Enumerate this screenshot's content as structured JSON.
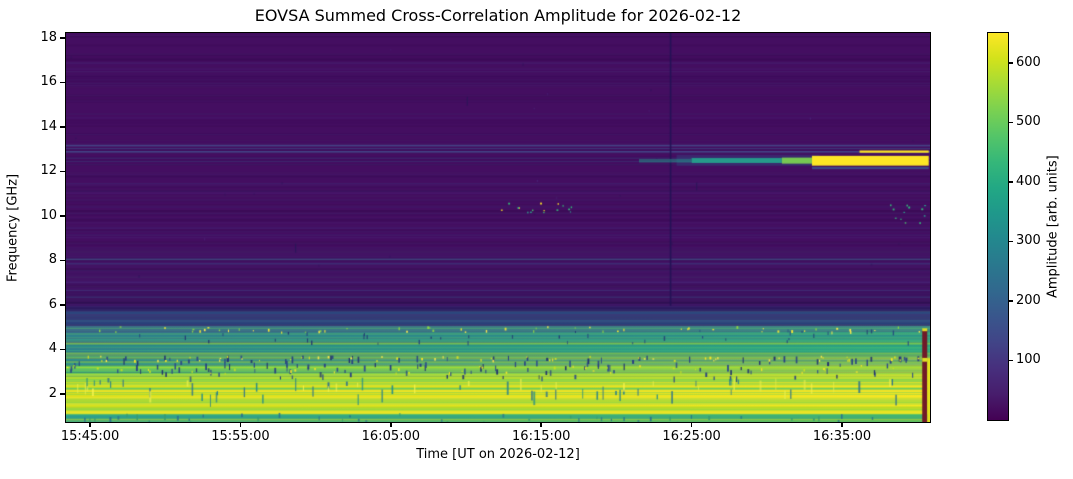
{
  "chart_data": {
    "type": "heatmap",
    "subtype": "radio-spectrogram",
    "title": "EOVSA Summed Cross-Correlation Amplitude for 2026-02-12",
    "xlabel": "Time [UT on 2026-02-12]",
    "ylabel": "Frequency [GHz]",
    "x_range": [
      "15:43:24",
      "16:40:51"
    ],
    "y_range_ghz": [
      0.74,
      18.22
    ],
    "x_ticks": [
      "15:45:00",
      "15:55:00",
      "16:05:00",
      "16:15:00",
      "16:25:00",
      "16:35:00"
    ],
    "y_ticks": [
      18,
      16,
      14,
      12,
      10,
      8,
      6,
      4,
      2
    ],
    "grid": false,
    "colorbar": {
      "label": "Amplitude [arb. units]",
      "ticks": [
        600,
        500,
        400,
        300,
        200,
        100
      ],
      "vmin": 0,
      "vmax": 650,
      "colormap": "viridis",
      "position": "right"
    },
    "features": {
      "background": "quiet low-amplitude purple above ~6 GHz",
      "low_freq_band": "saturated broadband emission ~1-3 GHz (yellow, ~650 arb. units)",
      "mid_band": "enhanced amplitude 3-5.5 GHz with dense narrow RFI dropouts and speckle",
      "satellite_streak": "narrowband feature at ~12.4-12.6 GHz appearing ~16:22, saturating to yellow ~16:33-16:41",
      "vertical_dropout": "dark low-amplitude vertical line at ~16:23:36 from 6 to 18 GHz",
      "persistent_lines": "horizontal RFI lines near 13.2, 12.9, 8.0, 6.6, 6.35 GHz",
      "dot_clusters": "sparse teal/yellow dots near 10.3 GHz around 16:12-16:17 and 16:38-16:40",
      "edge_artifact": "dark maroon + yellow final columns below ~5 GHz at right edge"
    },
    "render": {
      "bg": "#440e61",
      "viridis": [
        "#440154",
        "#471d6c",
        "#472f7d",
        "#414487",
        "#39568c",
        "#31688e",
        "#2a788e",
        "#23888e",
        "#1f988b",
        "#22a884",
        "#35b779",
        "#54c568",
        "#7ad151",
        "#a5db36",
        "#d2e21b",
        "#fde725"
      ],
      "rects": [
        {
          "f0": 6.6,
          "f1": 8.6,
          "fill": "#3f2a75",
          "a": 0.18
        },
        {
          "f0": 5.96,
          "f1": 6.6,
          "fill": "#33175e",
          "a": 0.5
        },
        {
          "f0": 5.73,
          "f1": 5.96,
          "fill": "#2c1a5e",
          "a": 1
        },
        {
          "f0": 5.06,
          "f1": 5.73,
          "fill": {
            "h": [
              "#333a74",
              "#374272"
            ]
          },
          "a": 1
        },
        {
          "f0": 4.79,
          "f1": 5.06,
          "fill": {
            "h": [
              "#3a6e87",
              "#3f8a84"
            ]
          },
          "a": 1
        },
        {
          "f0": 4.3,
          "f1": 4.79,
          "fill": {
            "h": [
              "#346a8c",
              "#2f9c80"
            ]
          },
          "a": 1
        },
        {
          "f0": 3.73,
          "f1": 4.3,
          "fill": {
            "h": [
              "#2e7a8e",
              "#28a77f"
            ]
          },
          "a": 1
        },
        {
          "f0": 3.6,
          "f1": 3.73,
          "fill": {
            "h": [
              "#3f9d7b",
              "#4cae6b"
            ]
          },
          "a": 1
        },
        {
          "f0": 3.28,
          "f1": 3.6,
          "fill": {
            "h": [
              "#2f8e8c",
              "#35a384"
            ]
          },
          "a": 1
        },
        {
          "f0": 2.97,
          "f1": 3.28,
          "fill": {
            "h": [
              "#57c765",
              "#8fd744"
            ]
          },
          "a": 1
        },
        {
          "f0": 2.78,
          "f1": 2.97,
          "fill": {
            "h": [
              "#35b779",
              "#76d153"
            ]
          },
          "a": 1
        },
        {
          "f0": 1.4,
          "f1": 2.78,
          "fill": {
            "h": [
              "#d9e01d",
              "#f2e61f"
            ]
          },
          "a": 1
        },
        {
          "f0": 1.1,
          "f1": 1.4,
          "fill": {
            "h": [
              "#9ed93c",
              "#b9de2a"
            ]
          },
          "a": 1
        },
        {
          "f0": 0.74,
          "f1": 1.1,
          "fill": {
            "h": [
              "#2d9e8f",
              "#45b371"
            ]
          },
          "a": 1
        },
        {
          "f0": 2.78,
          "f1": 3.73,
          "fill": {
            "h": [
              "rgba(253,231,37,0)",
              "rgba(253,231,37,0.4)"
            ]
          },
          "a": 1
        },
        {
          "f0": 3.73,
          "f1": 4.79,
          "fill": {
            "h": [
              "rgba(70,190,130,0)",
              "rgba(70,190,130,0.22)"
            ]
          },
          "a": 1
        },
        {
          "t0": "16:15:00",
          "f0": 1.4,
          "f1": 2.9,
          "fill": {
            "h": [
              "rgba(253,231,37,0)",
              "rgba(253,231,37,0.5)"
            ]
          },
          "a": 1
        }
      ],
      "h_lines": [
        [
          16.6,
          "#4b2a7f",
          0.4,
          1
        ],
        [
          15.95,
          "#472470",
          0.3,
          1
        ],
        [
          13.16,
          "#454f8e",
          0.85,
          1.6
        ],
        [
          13.02,
          "#3f4886",
          0.7,
          1.2
        ],
        [
          12.88,
          "#444f8e",
          0.9,
          1.6
        ],
        [
          12.6,
          "#3c4383",
          0.6,
          1.2
        ],
        [
          12.45,
          "#39407e",
          0.5,
          1.2
        ],
        [
          12.3,
          "#35386f",
          0.4,
          1
        ],
        [
          11.45,
          "#3e2d77",
          0.5,
          1
        ],
        [
          11.1,
          "#3a2a70",
          0.35,
          1
        ],
        [
          10.4,
          "#3e2d77",
          0.45,
          1
        ],
        [
          10.1,
          "#3a2a70",
          0.3,
          1
        ],
        [
          9.45,
          "#3e2d77",
          0.4,
          1
        ],
        [
          9.15,
          "#3a2a70",
          0.35,
          1
        ],
        [
          8.75,
          "#3a2a70",
          0.3,
          1
        ],
        [
          8.05,
          "#3f5e92",
          0.85,
          1.6
        ],
        [
          7.85,
          "#3a4a86",
          0.55,
          1.2
        ],
        [
          7.55,
          "#3c2f72",
          0.4,
          1
        ],
        [
          7.25,
          "#3c2f72",
          0.4,
          1
        ],
        [
          7.0,
          "#3c2f72",
          0.35,
          1
        ],
        [
          6.65,
          "#3a407f",
          0.55,
          1.2
        ],
        [
          6.35,
          "#39457f",
          0.6,
          1.2
        ],
        [
          6.1,
          "#2a1050",
          0.8,
          1.6
        ],
        [
          5.5,
          "#2f5f8d",
          0.8,
          1.2
        ],
        [
          5.3,
          "#355d86",
          0.6,
          1
        ],
        [
          5.15,
          "#2b4a80",
          0.6,
          1
        ],
        [
          4.95,
          "#57c765",
          0.5,
          1
        ],
        [
          4.62,
          "#2a788e",
          0.6,
          1
        ],
        [
          4.45,
          "#57c765",
          0.45,
          1
        ],
        [
          4.15,
          "#1f9e89",
          0.5,
          1
        ],
        [
          3.95,
          "#57c765",
          0.4,
          1
        ],
        [
          3.66,
          "#aadc32",
          0.6,
          1
        ],
        [
          3.45,
          "#1f6f8e",
          0.5,
          1
        ],
        [
          3.2,
          "#cde11d",
          0.6,
          1
        ],
        [
          3.05,
          "#2a788e",
          0.4,
          1
        ],
        [
          2.85,
          "#fde725",
          0.6,
          1
        ],
        [
          2.6,
          "#8fd744",
          0.7,
          1
        ],
        [
          2.42,
          "#fde725",
          0.8,
          1.4
        ],
        [
          2.25,
          "#5ec962",
          0.6,
          1
        ],
        [
          2.1,
          "#fde725",
          0.7,
          1.2
        ],
        [
          1.98,
          "#76d153",
          0.5,
          1
        ],
        [
          1.83,
          "#fde725",
          0.9,
          2
        ],
        [
          1.55,
          "#b5de2b",
          0.7,
          1.2
        ],
        [
          1.3,
          "#8fd744",
          0.6,
          1
        ],
        [
          1.05,
          "#35b779",
          0.5,
          1
        ],
        [
          0.9,
          "#2d9e8f",
          0.5,
          1
        ]
      ],
      "v_lines": [
        {
          "t": "16:23:36",
          "f0": 5.96,
          "f1": 18.22,
          "c": "#241255",
          "w": 1.6,
          "a": 0.95
        },
        {
          "t": "15:58:40",
          "f0": 8.35,
          "f1": 8.75,
          "c": "#2a1659",
          "w": 1.2,
          "a": 0.9
        },
        {
          "t": "16:10:05",
          "f0": 14.95,
          "f1": 15.35,
          "c": "#2a1659",
          "w": 1.2,
          "a": 0.8
        },
        {
          "t": "16:25:20",
          "f0": 11.15,
          "f1": 11.5,
          "c": "#2a1659",
          "w": 1.2,
          "a": 0.8
        }
      ],
      "noise": [
        {
          "seed": 7,
          "full": true,
          "f0": 5.96,
          "f1": 18.22,
          "count": 120,
          "h0": 1,
          "h1": 2,
          "colors": [
            "#4b2a7f",
            "#432063",
            "#350a4e"
          ],
          "a0": 0.1,
          "a1": 0.35
        },
        {
          "seed": 11,
          "full": true,
          "f0": 5.06,
          "f1": 5.96,
          "count": 22,
          "h0": 1,
          "h1": 2,
          "colors": [
            "#2d5f8d",
            "#3b3a78",
            "#24447f"
          ],
          "a0": 0.4,
          "a1": 0.8
        },
        {
          "seed": 13,
          "full": true,
          "f0": 2.97,
          "f1": 4.79,
          "count": 34,
          "h0": 1,
          "h1": 2,
          "colors": [
            "#2d9e8f",
            "#57c765",
            "#2a788e",
            "#aadc32"
          ],
          "a0": 0.25,
          "a1": 0.55
        },
        {
          "seed": 17,
          "full": true,
          "f0": 1.72,
          "f1": 2.97,
          "count": 26,
          "h0": 1,
          "h1": 2,
          "colors": [
            "#fde725",
            "#8fd744",
            "#5ec962"
          ],
          "a0": 0.3,
          "a1": 0.65
        },
        {
          "seed": 19,
          "full": true,
          "f0": 0.74,
          "f1": 1.72,
          "count": 16,
          "h0": 1,
          "h1": 2,
          "colors": [
            "#fde725",
            "#c2df23",
            "#8fd744"
          ],
          "a0": 0.4,
          "a1": 0.8
        },
        {
          "seed": 23,
          "f0": 3.28,
          "f1": 3.73,
          "count": 95,
          "w0": 1,
          "w1": 2,
          "h0": 3,
          "h1": 7,
          "colors": [
            "#243a85",
            "#1f2d70",
            "#2c4a8a"
          ],
          "a0": 0.8,
          "a1": 1
        },
        {
          "seed": 29,
          "f0": 2.78,
          "f1": 3.25,
          "count": 60,
          "w0": 1,
          "w1": 2,
          "h0": 3,
          "h1": 6,
          "colors": [
            "#243a85",
            "#1f2d70",
            "#2c4a8a"
          ],
          "a0": 0.7,
          "a1": 1
        },
        {
          "seed": 31,
          "f0": 4.3,
          "f1": 4.95,
          "count": 40,
          "w0": 1,
          "w1": 1.5,
          "h0": 2,
          "h1": 5,
          "colors": [
            "#24447f",
            "#1f2d70"
          ],
          "a0": 0.6,
          "a1": 0.9
        },
        {
          "seed": 37,
          "f0": 3.52,
          "f1": 3.72,
          "count": 60,
          "w0": 1,
          "w1": 2,
          "h0": 1,
          "h1": 3,
          "colors": [
            "#fde725",
            "#ffe94d",
            "#d8e024"
          ],
          "a0": 0.9,
          "a1": 1
        },
        {
          "seed": 41,
          "f0": 2.95,
          "f1": 3.3,
          "count": 40,
          "w0": 1,
          "w1": 2,
          "h0": 1,
          "h1": 3,
          "colors": [
            "#fde725",
            "#c8e020"
          ],
          "a0": 0.8,
          "a1": 1
        },
        {
          "seed": 43,
          "f0": 4.8,
          "f1": 5.05,
          "count": 55,
          "w0": 1,
          "w1": 2,
          "h0": 1,
          "h1": 3,
          "colors": [
            "#f2e636",
            "#ffe94d",
            "#8fd744"
          ],
          "a0": 0.85,
          "a1": 1
        },
        {
          "seed": 47,
          "f0": 1.95,
          "f1": 2.8,
          "count": 48,
          "w0": 1,
          "w1": 2,
          "h0": 4,
          "h1": 14,
          "colors": [
            "#1f8a8c",
            "#2d708e",
            "#27808c"
          ],
          "a0": 0.7,
          "a1": 0.95
        },
        {
          "seed": 53,
          "f0": 1.95,
          "f1": 2.75,
          "count": 26,
          "w0": 1,
          "w1": 2,
          "h0": 4,
          "h1": 12,
          "colors": [
            "#f8f34f",
            "#e8ee4a"
          ],
          "a0": 0.6,
          "a1": 0.85
        },
        {
          "seed": 59,
          "f0": 0.74,
          "f1": 1.15,
          "count": 46,
          "w0": 1,
          "w1": 2,
          "h0": 2,
          "h1": 6,
          "colors": [
            "#2d708e",
            "#3a9b6f",
            "#27718a"
          ],
          "a0": 0.7,
          "a1": 1
        },
        {
          "seed": 61,
          "t0": "16:12:00",
          "t1": "16:17:40",
          "f0": 10.05,
          "f1": 10.6,
          "count": 16,
          "w0": 1,
          "w1": 2,
          "h0": 1,
          "h1": 2,
          "colors": [
            "#35b779",
            "#2d9e8f",
            "#4ac16d",
            "#fde725"
          ],
          "a0": 0.9,
          "a1": 1
        },
        {
          "seed": 67,
          "t0": "16:38:10",
          "t1": "16:40:30",
          "f0": 9.7,
          "f1": 10.7,
          "count": 13,
          "w0": 1,
          "w1": 2,
          "h0": 1,
          "h1": 2,
          "colors": [
            "#35b779",
            "#2d9e8f",
            "#4ac16d"
          ],
          "a0": 0.9,
          "a1": 1
        },
        {
          "seed": 71,
          "f0": 6.2,
          "f1": 18.0,
          "count": 25,
          "w0": 1,
          "w1": 1.5,
          "h0": 1,
          "h1": 3,
          "colors": [
            "#4b2a7f",
            "#2a1659"
          ],
          "a0": 0.3,
          "a1": 0.6
        }
      ],
      "front_rects": [
        {
          "t0": "16:24:00",
          "t1": "16:33:30",
          "f0": 12.25,
          "f1": 12.75,
          "fill": "#2f5f8f",
          "a": 0.3
        },
        {
          "t0": "16:21:30",
          "t1": "16:25:00",
          "f0": 12.4,
          "f1": 12.56,
          "fill": "#1f9e89",
          "a": 0.5
        },
        {
          "t0": "16:25:00",
          "t1": "16:31:00",
          "f0": 12.38,
          "f1": 12.6,
          "fill": "#25a08c",
          "a": 0.95
        },
        {
          "t0": "16:31:00",
          "t1": "16:33:00",
          "f0": 12.35,
          "f1": 12.62,
          "fill": "#7ad151",
          "a": 0.95
        },
        {
          "t0": "16:33:00",
          "t1": "16:40:46",
          "f0": 12.26,
          "f1": 12.7,
          "fill": "#fde725",
          "a": 1
        },
        {
          "t0": "16:36:10",
          "t1": "16:40:46",
          "f0": 12.84,
          "f1": 12.94,
          "fill": "#fde725",
          "a": 1
        },
        {
          "t0": "16:33:00",
          "t1": "16:40:46",
          "f0": 12.1,
          "f1": 12.2,
          "fill": "#3a6b9c",
          "a": 0.65
        },
        {
          "t0": "16:40:20",
          "t1": "16:40:40",
          "f0": 0.74,
          "f1": 4.9,
          "fill": "#701a28",
          "a": 1
        },
        {
          "t0": "16:40:20",
          "t1": "16:40:40",
          "f0": 3.45,
          "f1": 3.62,
          "fill": "#e0df25",
          "a": 1
        },
        {
          "t0": "16:40:20",
          "t1": "16:40:40",
          "f0": 4.82,
          "f1": 4.95,
          "fill": "#e0df25",
          "a": 1
        },
        {
          "t0": "16:40:40",
          "t1": "16:40:51",
          "f0": 0.74,
          "f1": 3.6,
          "fill": "#e3e01c",
          "a": 1
        }
      ]
    }
  }
}
